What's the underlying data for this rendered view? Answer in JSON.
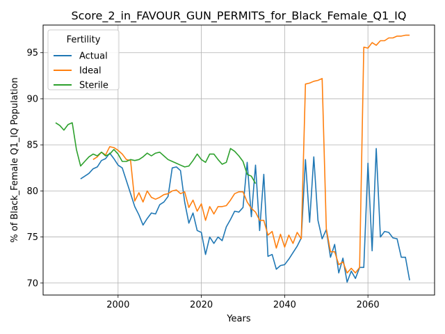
{
  "chart_data": {
    "type": "line",
    "title": "Score_2_in_FAVOUR_GUN_PERMITS_for_Black_Female_Q1_IQ",
    "xlabel": "Years",
    "ylabel": "% of Black_Female Q1_IQ Population",
    "xlim": [
      1982,
      2076
    ],
    "ylim": [
      68.7,
      98.0
    ],
    "xticks": [
      2000,
      2020,
      2040,
      2060
    ],
    "yticks": [
      70,
      75,
      80,
      85,
      90,
      95
    ],
    "grid": true,
    "legend": {
      "title": "Fertility",
      "position": "top-left"
    },
    "series": [
      {
        "name": "Actual",
        "color": "#1f77b4",
        "x": [
          1991,
          1992,
          1993,
          1994,
          1995,
          1996,
          1997,
          1998,
          1999,
          2000,
          2001,
          2002,
          2003,
          2004,
          2005,
          2006,
          2007,
          2008,
          2009,
          2010,
          2011,
          2012,
          2013,
          2014,
          2015,
          2016,
          2017,
          2018,
          2019,
          2020,
          2021,
          2022,
          2023,
          2024,
          2025,
          2026,
          2027,
          2028,
          2029,
          2030,
          2031,
          2032,
          2033,
          2034,
          2035,
          2036,
          2037,
          2038,
          2039,
          2040,
          2041,
          2042,
          2043,
          2044,
          2045,
          2046,
          2047,
          2048,
          2049,
          2050,
          2051,
          2052,
          2053,
          2054,
          2055,
          2056,
          2057,
          2058,
          2059,
          2060,
          2061,
          2062,
          2063,
          2064,
          2065,
          2066,
          2067,
          2068,
          2069,
          2070
        ],
        "y": [
          81.3,
          81.6,
          81.9,
          82.4,
          82.6,
          83.3,
          83.5,
          84.1,
          83.5,
          82.8,
          82.5,
          81.1,
          79.7,
          78.3,
          77.4,
          76.3,
          77.0,
          77.6,
          77.5,
          78.5,
          78.8,
          79.4,
          82.5,
          82.6,
          82.2,
          78.8,
          76.5,
          77.6,
          75.7,
          75.5,
          73.1,
          75.0,
          74.3,
          75.0,
          74.6,
          76.1,
          76.9,
          77.8,
          77.7,
          78.2,
          83.1,
          77.2,
          82.8,
          75.7,
          81.8,
          72.9,
          73.1,
          71.5,
          71.9,
          72.0,
          72.6,
          73.3,
          74.0,
          74.9,
          83.4,
          76.6,
          83.7,
          76.8,
          74.8,
          75.8,
          72.8,
          74.2,
          71.1,
          72.7,
          70.1,
          71.3,
          70.5,
          71.7,
          71.7,
          83.0,
          73.5,
          84.6,
          75.0,
          75.6,
          75.5,
          74.9,
          74.8,
          72.8,
          72.8,
          70.3
        ]
      },
      {
        "name": "Ideal",
        "color": "#ff7f0e",
        "x": [
          1994,
          1995,
          1996,
          1997,
          1998,
          1999,
          2000,
          2001,
          2002,
          2003,
          2004,
          2005,
          2006,
          2007,
          2008,
          2009,
          2010,
          2011,
          2012,
          2013,
          2014,
          2015,
          2016,
          2017,
          2018,
          2019,
          2020,
          2021,
          2022,
          2023,
          2024,
          2025,
          2026,
          2027,
          2028,
          2029,
          2030,
          2031,
          2032,
          2033,
          2034,
          2035,
          2036,
          2037,
          2038,
          2039,
          2040,
          2041,
          2042,
          2043,
          2044,
          2045,
          2046,
          2047,
          2048,
          2049,
          2050,
          2051,
          2052,
          2053,
          2054,
          2055,
          2056,
          2057,
          2058,
          2059,
          2060,
          2061,
          2062,
          2063,
          2064,
          2065,
          2066,
          2067,
          2068,
          2069,
          2070
        ],
        "y": [
          83.4,
          83.7,
          84.2,
          83.9,
          84.8,
          84.7,
          84.4,
          84.0,
          83.4,
          83.3,
          78.9,
          79.8,
          78.8,
          80.0,
          79.3,
          79.1,
          79.3,
          79.6,
          79.7,
          80.0,
          80.1,
          79.7,
          79.9,
          78.2,
          79.0,
          77.8,
          78.6,
          76.8,
          78.3,
          77.5,
          78.3,
          78.3,
          78.4,
          79.0,
          79.7,
          79.9,
          79.9,
          78.8,
          78.1,
          77.7,
          76.8,
          76.8,
          75.2,
          75.6,
          73.8,
          75.3,
          73.9,
          75.2,
          74.3,
          75.5,
          74.8,
          91.6,
          91.7,
          91.9,
          92.0,
          92.2,
          75.9,
          73.4,
          73.4,
          72.0,
          72.3,
          71.1,
          71.6,
          71.1,
          71.7,
          95.6,
          95.5,
          96.1,
          95.8,
          96.3,
          96.3,
          96.6,
          96.6,
          96.8,
          96.8,
          96.9,
          96.9
        ]
      },
      {
        "name": "Sterile",
        "color": "#2ca02c",
        "x": [
          1985,
          1986,
          1987,
          1988,
          1989,
          1990,
          1991,
          1992,
          1993,
          1994,
          1995,
          1996,
          1997,
          1998,
          1999,
          2000,
          2001,
          2002,
          2003,
          2004,
          2005,
          2006,
          2007,
          2008,
          2009,
          2010,
          2011,
          2012,
          2013,
          2014,
          2015,
          2016,
          2017,
          2018,
          2019,
          2020,
          2021,
          2022,
          2023,
          2024,
          2025,
          2026,
          2027,
          2028,
          2029,
          2030,
          2031,
          2032,
          2033
        ],
        "y": [
          87.4,
          87.1,
          86.6,
          87.2,
          87.4,
          84.5,
          82.7,
          83.2,
          83.7,
          84.0,
          83.8,
          84.2,
          83.8,
          84.0,
          84.5,
          84.0,
          83.2,
          83.2,
          83.4,
          83.3,
          83.4,
          83.7,
          84.1,
          83.8,
          84.1,
          84.2,
          83.8,
          83.4,
          83.2,
          83.0,
          82.8,
          82.6,
          82.7,
          83.3,
          84.0,
          83.4,
          83.1,
          84.0,
          84.0,
          83.4,
          82.9,
          83.1,
          84.6,
          84.3,
          83.8,
          83.2,
          81.8,
          81.6,
          80.8
        ]
      }
    ]
  }
}
